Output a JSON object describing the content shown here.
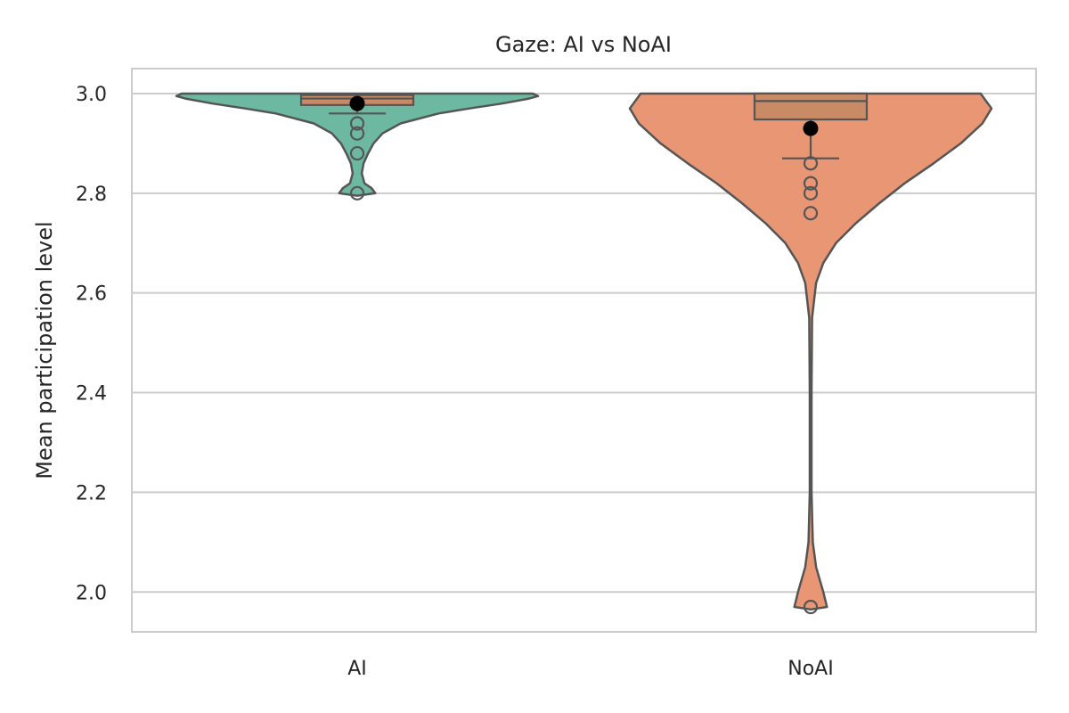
{
  "chart_data": {
    "type": "violin",
    "title": "Gaze: AI vs NoAI",
    "xlabel": "",
    "ylabel": "Mean participation level",
    "categories": [
      "AI",
      "NoAI"
    ],
    "ylim": [
      1.92,
      3.05
    ],
    "yticks": [
      2.0,
      2.2,
      2.4,
      2.6,
      2.8,
      3.0
    ],
    "ytick_labels": [
      "2.0",
      "2.2",
      "2.4",
      "2.6",
      "2.8",
      "3.0"
    ],
    "grid": true,
    "colors": {
      "AI": "#6db8a0",
      "NoAI": "#e99674",
      "box_fill": "#c98a66",
      "outline": "#555555",
      "mean_marker": "#000000",
      "grid": "#cccccc"
    },
    "groups": [
      {
        "name": "AI",
        "density": [
          [
            2.795,
            0.0
          ],
          [
            2.8,
            0.1
          ],
          [
            2.81,
            0.08
          ],
          [
            2.82,
            0.04
          ],
          [
            2.84,
            0.025
          ],
          [
            2.86,
            0.035
          ],
          [
            2.88,
            0.06
          ],
          [
            2.9,
            0.09
          ],
          [
            2.92,
            0.14
          ],
          [
            2.94,
            0.24
          ],
          [
            2.96,
            0.45
          ],
          [
            2.97,
            0.62
          ],
          [
            2.98,
            0.8
          ],
          [
            2.99,
            0.95
          ],
          [
            2.995,
            1.0
          ],
          [
            3.0,
            0.97
          ]
        ],
        "box": {
          "q1": 2.977,
          "median": 2.99,
          "q3": 2.997,
          "whisker_low": 2.96,
          "whisker_high": 3.0
        },
        "mean": 2.98,
        "outliers": [
          2.94,
          2.92,
          2.88,
          2.8
        ]
      },
      {
        "name": "NoAI",
        "density": [
          [
            1.965,
            0.0
          ],
          [
            1.97,
            0.09
          ],
          [
            2.0,
            0.07
          ],
          [
            2.05,
            0.03
          ],
          [
            2.1,
            0.012
          ],
          [
            2.2,
            0.005
          ],
          [
            2.4,
            0.005
          ],
          [
            2.55,
            0.008
          ],
          [
            2.62,
            0.03
          ],
          [
            2.66,
            0.07
          ],
          [
            2.7,
            0.14
          ],
          [
            2.74,
            0.25
          ],
          [
            2.78,
            0.38
          ],
          [
            2.82,
            0.52
          ],
          [
            2.86,
            0.68
          ],
          [
            2.9,
            0.83
          ],
          [
            2.94,
            0.95
          ],
          [
            2.97,
            1.0
          ],
          [
            2.99,
            0.96
          ],
          [
            3.0,
            0.94
          ]
        ],
        "box": {
          "q1": 2.948,
          "median": 2.985,
          "q3": 3.0,
          "whisker_low": 2.87,
          "whisker_high": 3.0
        },
        "mean": 2.93,
        "outliers": [
          2.86,
          2.82,
          2.8,
          2.76,
          1.97
        ]
      }
    ]
  }
}
